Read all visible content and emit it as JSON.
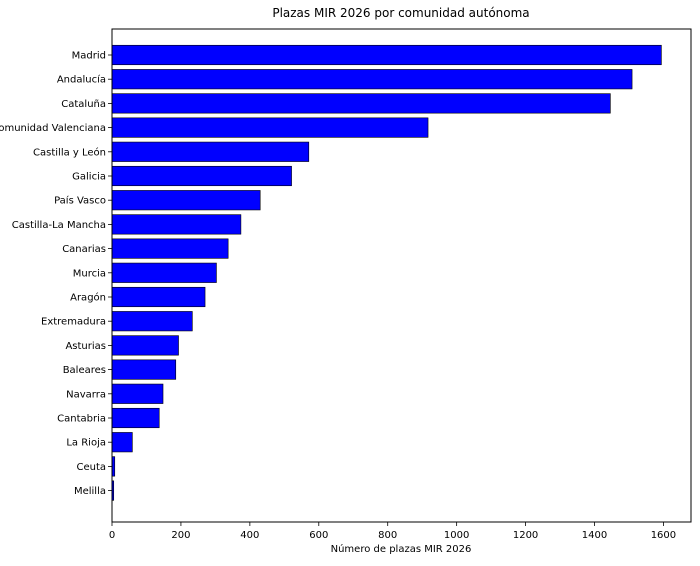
{
  "chart_data": {
    "type": "bar",
    "orientation": "horizontal",
    "title": "Plazas MIR 2026 por comunidad autónoma",
    "xlabel": "Número de plazas MIR 2026",
    "ylabel": "",
    "xlim": [
      0,
      1680
    ],
    "xticks": [
      0,
      200,
      400,
      600,
      800,
      1000,
      1200,
      1400,
      1600
    ],
    "grid": false,
    "bar_color": "#0000ff",
    "bar_edge_color": "#000000",
    "categories": [
      "Madrid",
      "Andalucía",
      "Cataluña",
      "Comunidad Valenciana",
      "Castilla y León",
      "Galicia",
      "País Vasco",
      "Castilla-La Mancha",
      "Canarias",
      "Murcia",
      "Aragón",
      "Extremadura",
      "Asturias",
      "Baleares",
      "Navarra",
      "Cantabria",
      "La Rioja",
      "Ceuta",
      "Melilla"
    ],
    "values": [
      1594,
      1509,
      1446,
      917,
      571,
      521,
      430,
      374,
      337,
      303,
      270,
      233,
      193,
      185,
      148,
      137,
      59,
      8,
      5
    ]
  }
}
